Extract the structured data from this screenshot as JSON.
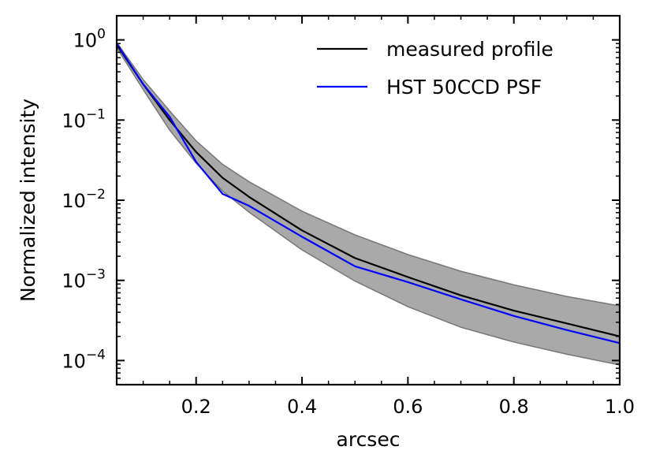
{
  "chart_data": {
    "type": "line",
    "title": "",
    "xlabel": "arcsec",
    "ylabel": "Normalized intensity",
    "xlim": [
      0.05,
      1.0
    ],
    "ylim": [
      5e-05,
      2.0
    ],
    "yscale": "log",
    "grid": false,
    "legend_position": "top-right",
    "x_ticks": [
      0.2,
      0.4,
      0.6,
      0.8,
      1.0
    ],
    "x_tick_labels": [
      "0.2",
      "0.4",
      "0.6",
      "0.8",
      "1.0"
    ],
    "y_ticks": [
      {
        "value": 1,
        "base": "10",
        "exp": "0"
      },
      {
        "value": 0.1,
        "base": "10",
        "exp": "−1"
      },
      {
        "value": 0.01,
        "base": "10",
        "exp": "−2"
      },
      {
        "value": 0.001,
        "base": "10",
        "exp": "−3"
      },
      {
        "value": 0.0001,
        "base": "10",
        "exp": "−4"
      }
    ],
    "band": {
      "x": [
        0.05,
        0.1,
        0.15,
        0.2,
        0.25,
        0.3,
        0.4,
        0.5,
        0.6,
        0.7,
        0.8,
        0.9,
        1.0
      ],
      "upper": [
        0.93,
        0.32,
        0.13,
        0.055,
        0.028,
        0.017,
        0.0073,
        0.0037,
        0.0021,
        0.0013,
        0.00088,
        0.00063,
        0.00048
      ],
      "lower": [
        0.8,
        0.24,
        0.075,
        0.029,
        0.013,
        0.0071,
        0.0024,
        0.00098,
        0.00047,
        0.00026,
        0.00017,
        0.00012,
        8.8e-05
      ],
      "color": "#a9a9a9",
      "edge_color": "#777777"
    },
    "series": [
      {
        "name": "measured profile",
        "color": "#000000",
        "x": [
          0.05,
          0.1,
          0.15,
          0.2,
          0.25,
          0.3,
          0.4,
          0.5,
          0.6,
          0.7,
          0.8,
          0.9,
          1.0
        ],
        "y": [
          0.87,
          0.28,
          0.1,
          0.04,
          0.019,
          0.011,
          0.0042,
          0.0019,
          0.0011,
          0.00065,
          0.00042,
          0.00029,
          0.0002
        ]
      },
      {
        "name": "HST 50CCD PSF",
        "color": "#0000ff",
        "x": [
          0.05,
          0.1,
          0.15,
          0.2,
          0.25,
          0.3,
          0.4,
          0.5,
          0.6,
          0.7,
          0.8,
          0.9,
          1.0
        ],
        "y": [
          0.9,
          0.28,
          0.11,
          0.03,
          0.012,
          0.0085,
          0.0035,
          0.0015,
          0.00095,
          0.00058,
          0.00036,
          0.00024,
          0.000165
        ]
      }
    ]
  }
}
